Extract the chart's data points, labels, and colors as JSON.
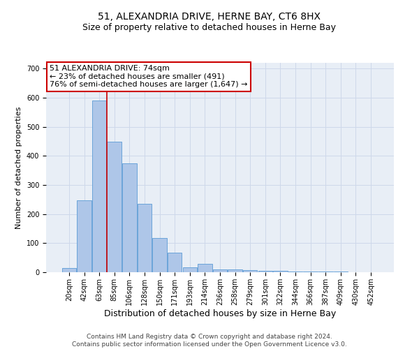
{
  "title": "51, ALEXANDRIA DRIVE, HERNE BAY, CT6 8HX",
  "subtitle": "Size of property relative to detached houses in Herne Bay",
  "xlabel": "Distribution of detached houses by size in Herne Bay",
  "ylabel": "Number of detached properties",
  "bar_values": [
    15,
    248,
    590,
    450,
    375,
    235,
    118,
    68,
    18,
    28,
    10,
    10,
    7,
    5,
    5,
    3,
    3,
    2,
    2,
    1,
    1
  ],
  "bar_labels": [
    "20sqm",
    "42sqm",
    "63sqm",
    "85sqm",
    "106sqm",
    "128sqm",
    "150sqm",
    "171sqm",
    "193sqm",
    "214sqm",
    "236sqm",
    "258sqm",
    "279sqm",
    "301sqm",
    "322sqm",
    "344sqm",
    "366sqm",
    "387sqm",
    "409sqm",
    "430sqm",
    "452sqm"
  ],
  "bar_color": "#aec6e8",
  "bar_edge_color": "#5b9bd5",
  "red_line_x": 2.5,
  "annotation_line1": "51 ALEXANDRIA DRIVE: 74sqm",
  "annotation_line2": "← 23% of detached houses are smaller (491)",
  "annotation_line3": "76% of semi-detached houses are larger (1,647) →",
  "annotation_box_color": "#ffffff",
  "annotation_box_edge": "#cc0000",
  "ylim": [
    0,
    720
  ],
  "yticks": [
    0,
    100,
    200,
    300,
    400,
    500,
    600,
    700
  ],
  "grid_color": "#ced8ea",
  "background_color": "#e8eef6",
  "footer_text": "Contains HM Land Registry data © Crown copyright and database right 2024.\nContains public sector information licensed under the Open Government Licence v3.0.",
  "title_fontsize": 10,
  "subtitle_fontsize": 9,
  "xlabel_fontsize": 9,
  "ylabel_fontsize": 8,
  "tick_fontsize": 7,
  "annotation_fontsize": 8,
  "footer_fontsize": 6.5
}
